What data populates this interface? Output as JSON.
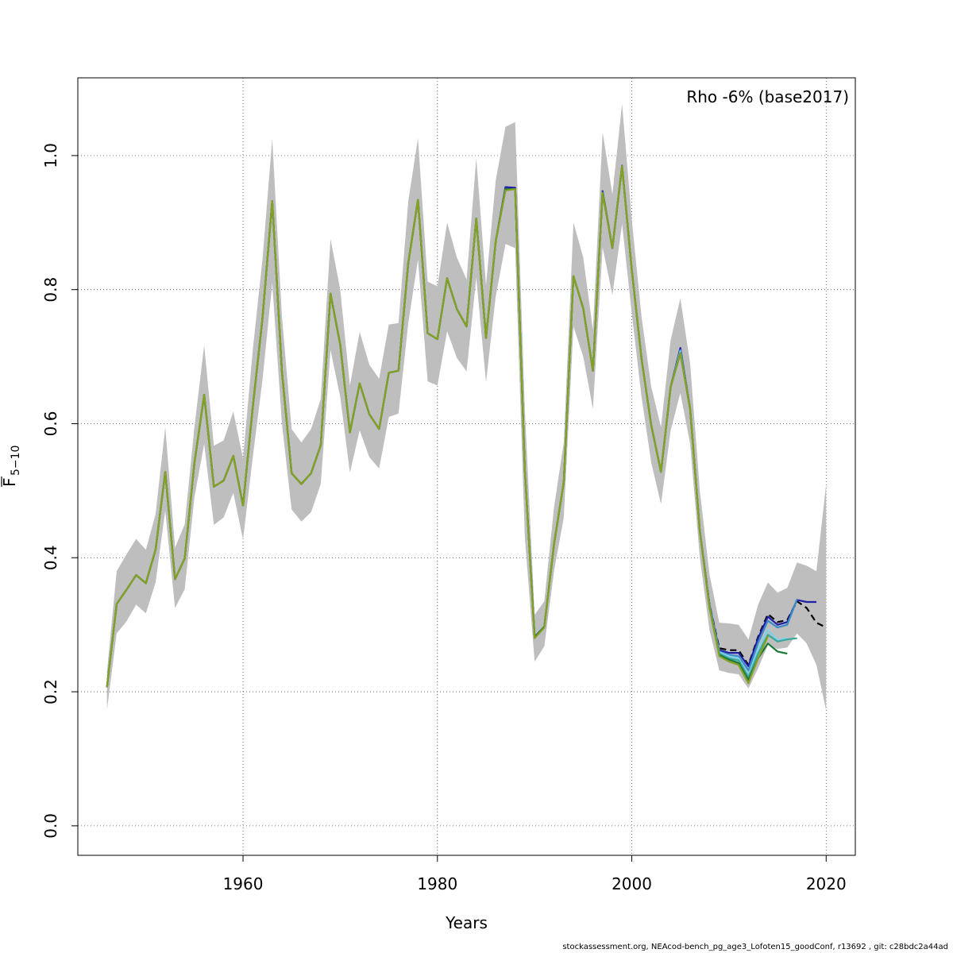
{
  "chart_data": {
    "type": "line",
    "title": "",
    "xlabel": "Years",
    "ylabel_main": "F",
    "ylabel_sub": "5−10",
    "xlim": [
      1943,
      2023
    ],
    "ylim": [
      -0.044,
      1.116
    ],
    "x_ticks": [
      1960,
      1980,
      2000,
      2020
    ],
    "y_ticks": [
      0.0,
      0.2,
      0.4,
      0.6,
      0.8,
      1.0
    ],
    "x_tick_labels": [
      "1960",
      "1980",
      "2000",
      "2020"
    ],
    "y_tick_labels": [
      "0.0",
      "0.2",
      "0.4",
      "0.6",
      "0.8",
      "1.0"
    ],
    "grid": true,
    "annotation": "Rho -6% (base2017)",
    "footer": "stockassessment.org, NEAcod-bench_pg_age3_Lofoten15_goodConf, r13692 , git: c28bdc2a44ad",
    "band_color": "#bebebe",
    "years": [
      1946,
      1947,
      1948,
      1949,
      1950,
      1951,
      1952,
      1953,
      1954,
      1955,
      1956,
      1957,
      1958,
      1959,
      1960,
      1961,
      1962,
      1963,
      1964,
      1965,
      1966,
      1967,
      1968,
      1969,
      1970,
      1971,
      1972,
      1973,
      1974,
      1975,
      1976,
      1977,
      1978,
      1979,
      1980,
      1981,
      1982,
      1983,
      1984,
      1985,
      1986,
      1987,
      1988,
      1989,
      1990,
      1991,
      1992,
      1993,
      1994,
      1995,
      1996,
      1997,
      1998,
      1999,
      2000,
      2001,
      2002,
      2003,
      2004,
      2005,
      2006,
      2007,
      2008,
      2009,
      2010,
      2011,
      2012,
      2013,
      2014,
      2015,
      2016,
      2017,
      2018,
      2019,
      2020
    ],
    "upper": [
      0.23,
      0.38,
      0.405,
      0.428,
      0.412,
      0.465,
      0.595,
      0.415,
      0.45,
      0.595,
      0.717,
      0.567,
      0.575,
      0.618,
      0.548,
      0.71,
      0.845,
      1.025,
      0.76,
      0.592,
      0.572,
      0.592,
      0.637,
      0.876,
      0.8,
      0.657,
      0.737,
      0.688,
      0.667,
      0.748,
      0.75,
      0.932,
      1.026,
      0.812,
      0.805,
      0.9,
      0.848,
      0.815,
      0.996,
      0.807,
      0.963,
      1.043,
      1.05,
      0.62,
      0.315,
      0.335,
      0.475,
      0.572,
      0.9,
      0.848,
      0.74,
      1.035,
      0.942,
      1.077,
      0.905,
      0.76,
      0.655,
      0.595,
      0.725,
      0.787,
      0.69,
      0.5,
      0.375,
      0.303,
      0.302,
      0.3,
      0.278,
      0.33,
      0.363,
      0.348,
      0.355,
      0.393,
      0.388,
      0.38,
      0.51
    ],
    "lower": [
      0.173,
      0.287,
      0.305,
      0.33,
      0.317,
      0.363,
      0.47,
      0.325,
      0.353,
      0.49,
      0.57,
      0.449,
      0.46,
      0.497,
      0.427,
      0.55,
      0.665,
      0.81,
      0.6,
      0.472,
      0.454,
      0.468,
      0.51,
      0.71,
      0.64,
      0.527,
      0.59,
      0.55,
      0.533,
      0.61,
      0.615,
      0.75,
      0.845,
      0.663,
      0.657,
      0.738,
      0.698,
      0.678,
      0.818,
      0.662,
      0.79,
      0.868,
      0.862,
      0.43,
      0.245,
      0.268,
      0.38,
      0.46,
      0.745,
      0.7,
      0.622,
      0.863,
      0.792,
      0.898,
      0.765,
      0.64,
      0.542,
      0.48,
      0.59,
      0.646,
      0.57,
      0.4,
      0.292,
      0.232,
      0.228,
      0.226,
      0.205,
      0.235,
      0.27,
      0.264,
      0.266,
      0.287,
      0.272,
      0.24,
      0.172
    ],
    "series": [
      {
        "values": [
          0.207,
          0.331,
          0.352,
          0.374,
          0.362,
          0.412,
          0.528,
          0.368,
          0.399,
          0.541,
          0.643,
          0.506,
          0.515,
          0.552,
          0.478,
          0.625,
          0.757,
          0.932,
          0.678,
          0.526,
          0.51,
          0.526,
          0.568,
          0.794,
          0.718,
          0.587,
          0.66,
          0.614,
          0.592,
          0.676,
          0.679,
          0.84,
          0.934,
          0.735,
          0.726,
          0.817,
          0.771,
          0.745,
          0.906,
          0.728,
          0.872,
          0.952,
          0.951,
          0.53,
          0.282,
          0.297,
          0.42,
          0.513,
          0.82,
          0.772,
          0.679,
          0.946,
          0.862,
          0.984,
          0.83,
          0.697,
          0.598,
          0.528,
          0.655,
          0.712,
          0.622,
          0.44,
          0.33,
          0.265,
          0.262,
          0.262,
          0.24,
          0.282,
          0.316,
          0.304,
          0.307,
          0.335,
          0.325,
          0.303,
          0.296
        ],
        "color": "#000000",
        "dash": "8,5"
      },
      {
        "x0": 1946,
        "values": [
          0.207,
          0.331,
          0.352,
          0.374,
          0.362,
          0.412,
          0.528,
          0.368,
          0.399,
          0.541,
          0.643,
          0.506,
          0.515,
          0.552,
          0.478,
          0.625,
          0.757,
          0.932,
          0.678,
          0.526,
          0.51,
          0.526,
          0.568,
          0.794,
          0.718,
          0.587,
          0.66,
          0.614,
          0.592,
          0.676,
          0.679,
          0.84,
          0.934,
          0.735,
          0.726,
          0.817,
          0.771,
          0.745,
          0.906,
          0.728,
          0.872,
          0.953,
          0.952,
          0.53,
          0.282,
          0.297,
          0.42,
          0.513,
          0.82,
          0.772,
          0.679,
          0.947,
          0.862,
          0.985,
          0.83,
          0.697,
          0.598,
          0.528,
          0.655,
          0.713,
          0.622,
          0.44,
          0.33,
          0.262,
          0.258,
          0.258,
          0.238,
          0.28,
          0.312,
          0.3,
          0.304,
          0.337,
          0.334,
          0.334
        ],
        "color": "#2020a8"
      },
      {
        "x0": 1946,
        "values": [
          0.207,
          0.331,
          0.352,
          0.374,
          0.362,
          0.412,
          0.528,
          0.368,
          0.399,
          0.541,
          0.643,
          0.506,
          0.515,
          0.552,
          0.478,
          0.625,
          0.757,
          0.932,
          0.678,
          0.526,
          0.51,
          0.526,
          0.568,
          0.794,
          0.718,
          0.587,
          0.66,
          0.614,
          0.592,
          0.676,
          0.679,
          0.84,
          0.934,
          0.735,
          0.726,
          0.817,
          0.771,
          0.745,
          0.906,
          0.728,
          0.872,
          0.95,
          0.95,
          0.53,
          0.282,
          0.297,
          0.42,
          0.513,
          0.82,
          0.772,
          0.679,
          0.945,
          0.862,
          0.984,
          0.83,
          0.697,
          0.598,
          0.528,
          0.655,
          0.71,
          0.622,
          0.44,
          0.328,
          0.26,
          0.255,
          0.253,
          0.232,
          0.273,
          0.306,
          0.296,
          0.3,
          0.338
        ],
        "color": "#3a8cc8"
      },
      {
        "x0": 1946,
        "values": [
          0.207,
          0.331,
          0.352,
          0.374,
          0.362,
          0.412,
          0.528,
          0.368,
          0.399,
          0.541,
          0.643,
          0.506,
          0.515,
          0.552,
          0.478,
          0.625,
          0.757,
          0.932,
          0.678,
          0.526,
          0.51,
          0.526,
          0.568,
          0.794,
          0.718,
          0.587,
          0.66,
          0.614,
          0.592,
          0.676,
          0.679,
          0.84,
          0.934,
          0.735,
          0.726,
          0.817,
          0.771,
          0.745,
          0.906,
          0.728,
          0.872,
          0.95,
          0.95,
          0.53,
          0.282,
          0.297,
          0.42,
          0.513,
          0.82,
          0.772,
          0.679,
          0.945,
          0.862,
          0.984,
          0.83,
          0.697,
          0.598,
          0.528,
          0.655,
          0.708,
          0.622,
          0.44,
          0.328,
          0.259,
          0.253,
          0.25,
          0.225,
          0.263,
          0.292,
          0.277,
          0.28
        ],
        "color": "#80d0e8"
      },
      {
        "x0": 1946,
        "values": [
          0.207,
          0.331,
          0.352,
          0.374,
          0.362,
          0.412,
          0.528,
          0.368,
          0.399,
          0.541,
          0.643,
          0.506,
          0.515,
          0.552,
          0.478,
          0.625,
          0.757,
          0.932,
          0.678,
          0.526,
          0.51,
          0.526,
          0.568,
          0.794,
          0.718,
          0.587,
          0.66,
          0.614,
          0.592,
          0.676,
          0.679,
          0.84,
          0.934,
          0.735,
          0.726,
          0.817,
          0.771,
          0.745,
          0.906,
          0.728,
          0.872,
          0.95,
          0.95,
          0.53,
          0.282,
          0.297,
          0.42,
          0.513,
          0.82,
          0.772,
          0.679,
          0.945,
          0.862,
          0.984,
          0.83,
          0.697,
          0.598,
          0.528,
          0.655,
          0.706,
          0.622,
          0.44,
          0.327,
          0.257,
          0.25,
          0.247,
          0.222,
          0.257,
          0.285,
          0.275,
          0.278,
          0.28
        ],
        "color": "#3aa89a"
      },
      {
        "x0": 1946,
        "values": [
          0.207,
          0.331,
          0.352,
          0.374,
          0.362,
          0.412,
          0.528,
          0.368,
          0.399,
          0.541,
          0.643,
          0.506,
          0.515,
          0.552,
          0.478,
          0.625,
          0.757,
          0.932,
          0.678,
          0.526,
          0.51,
          0.526,
          0.568,
          0.794,
          0.718,
          0.587,
          0.66,
          0.614,
          0.592,
          0.676,
          0.679,
          0.84,
          0.934,
          0.735,
          0.726,
          0.817,
          0.771,
          0.745,
          0.906,
          0.728,
          0.872,
          0.95,
          0.95,
          0.53,
          0.282,
          0.297,
          0.42,
          0.513,
          0.82,
          0.772,
          0.679,
          0.945,
          0.862,
          0.984,
          0.83,
          0.697,
          0.598,
          0.528,
          0.655,
          0.705,
          0.622,
          0.44,
          0.326,
          0.255,
          0.248,
          0.243,
          0.218,
          0.25,
          0.272,
          0.26,
          0.257
        ],
        "color": "#1a7a3a"
      },
      {
        "x0": 1946,
        "values": [
          0.207,
          0.331,
          0.352,
          0.374,
          0.362,
          0.412,
          0.528,
          0.368,
          0.399,
          0.541,
          0.643,
          0.506,
          0.515,
          0.552,
          0.478,
          0.625,
          0.757,
          0.932,
          0.678,
          0.526,
          0.51,
          0.526,
          0.568,
          0.794,
          0.718,
          0.587,
          0.66,
          0.614,
          0.592,
          0.676,
          0.679,
          0.84,
          0.934,
          0.735,
          0.726,
          0.817,
          0.771,
          0.745,
          0.906,
          0.728,
          0.872,
          0.948,
          0.95,
          0.53,
          0.28,
          0.296,
          0.42,
          0.513,
          0.82,
          0.772,
          0.679,
          0.944,
          0.862,
          0.984,
          0.83,
          0.697,
          0.598,
          0.528,
          0.655,
          0.705,
          0.622,
          0.44,
          0.325,
          0.253,
          0.245,
          0.24,
          0.213,
          0.25,
          0.283
        ],
        "color": "#88a020"
      }
    ]
  }
}
